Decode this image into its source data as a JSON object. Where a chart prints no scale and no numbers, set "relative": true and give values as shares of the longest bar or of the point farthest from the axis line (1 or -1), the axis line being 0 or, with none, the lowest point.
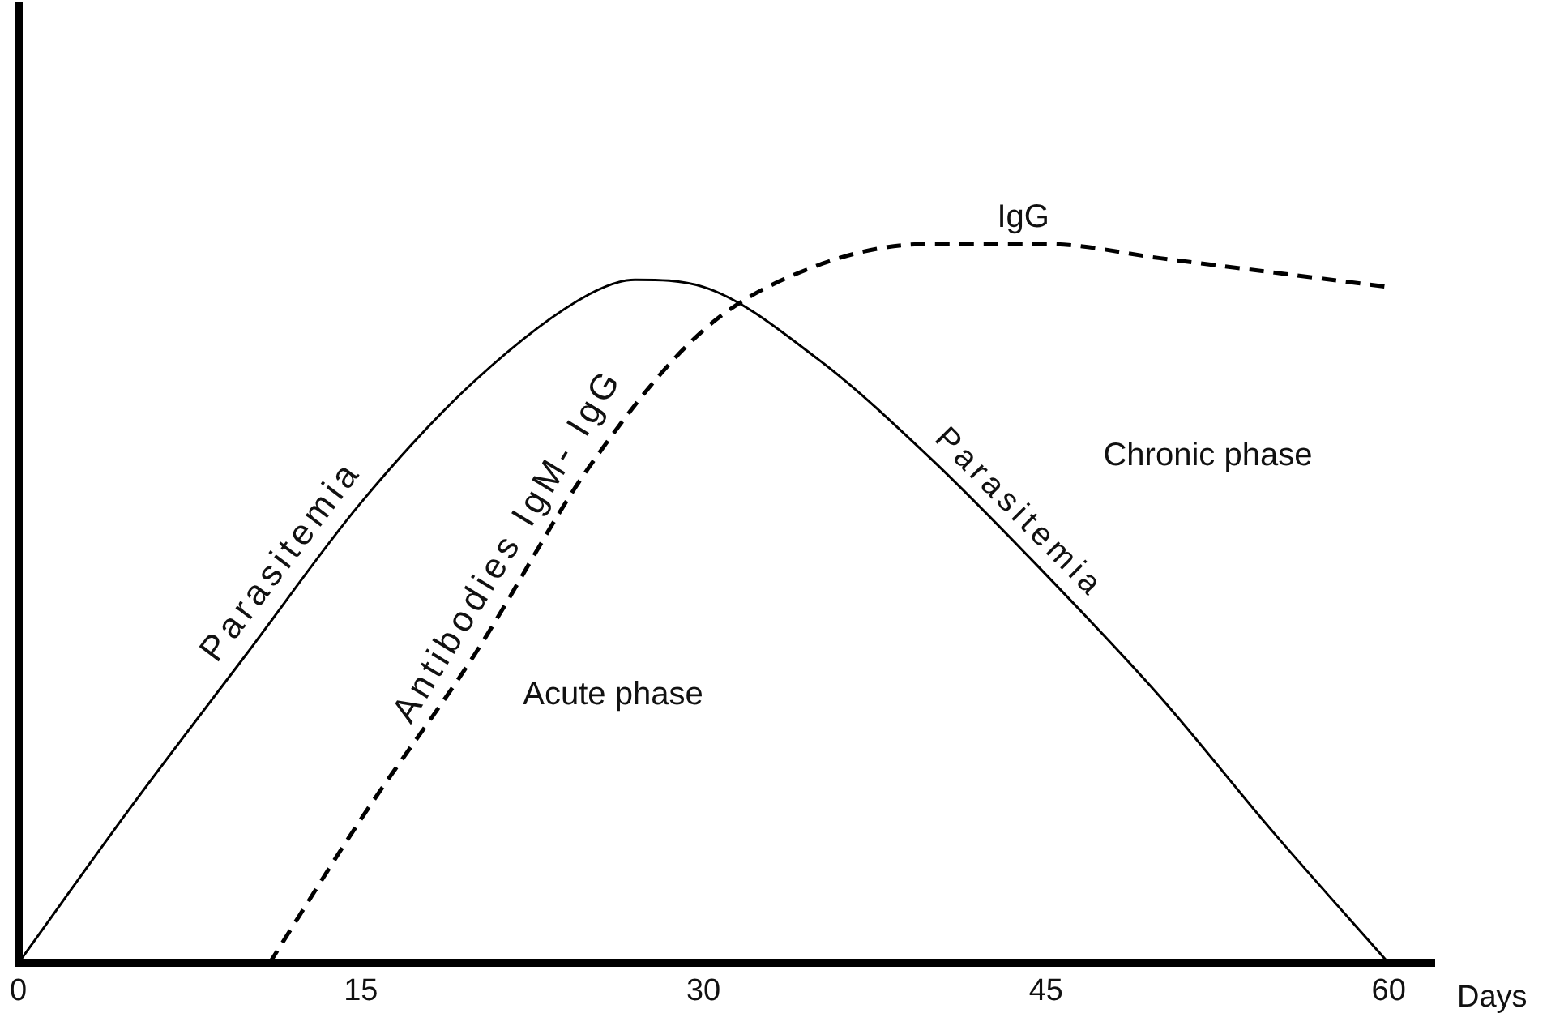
{
  "chart_data": {
    "type": "line",
    "relative": true,
    "xlabel": "Days",
    "xlim": [
      0,
      62
    ],
    "xticks": [
      0,
      15,
      30,
      45,
      60
    ],
    "grid": false,
    "legend": false,
    "marker": "none",
    "series": [
      {
        "name": "Parasitemia",
        "color": "#000000",
        "line_style": "solid",
        "x": [
          0,
          5,
          10,
          15,
          20,
          25,
          27,
          30,
          35,
          40,
          45,
          50,
          55,
          60
        ],
        "values": [
          0,
          0.22,
          0.43,
          0.64,
          0.81,
          0.93,
          0.95,
          0.94,
          0.84,
          0.7,
          0.54,
          0.37,
          0.18,
          0
        ]
      },
      {
        "name": "Antibodies IgM- IgG",
        "color": "#000000",
        "line_style": "dashed",
        "x": [
          11,
          15,
          20,
          25,
          30,
          35,
          40,
          45,
          50,
          55,
          60
        ],
        "values": [
          0,
          0.2,
          0.43,
          0.69,
          0.88,
          0.97,
          1,
          1,
          0.98,
          0.96,
          0.94
        ]
      }
    ],
    "annotations": [
      {
        "text": "IgG",
        "x": 44,
        "y": 1
      },
      {
        "text": "Parasitemia",
        "x": 43,
        "y": 0.6
      },
      "Acute phase",
      "Chronic phase"
    ]
  }
}
